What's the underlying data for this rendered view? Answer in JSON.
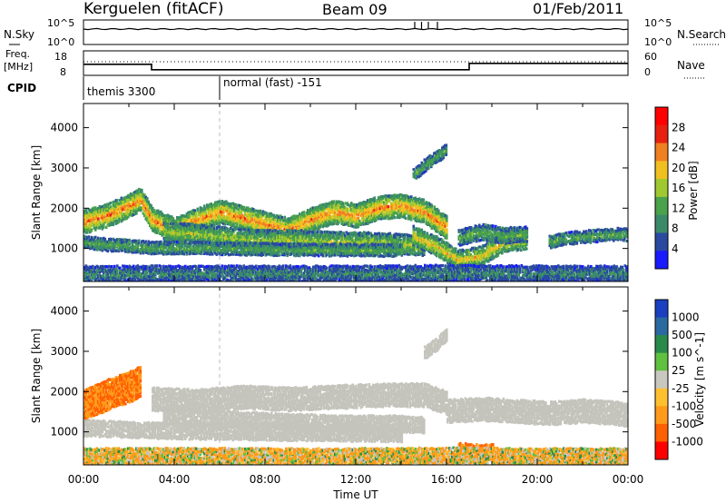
{
  "header": {
    "station": "Kerguelen (fitACF)",
    "beam": "Beam 09",
    "date": "01/Feb/2011"
  },
  "noise_panel": {
    "left_label": "N.Sky",
    "right_label": "N.Search",
    "left_ticks": [
      "10^5",
      "10^0"
    ],
    "right_ticks": [
      "10^5",
      "10^0"
    ]
  },
  "freq_panel": {
    "left_label_1": "Freq.",
    "left_label_2": "[MHz]",
    "right_label": "Nave",
    "left_ticks": [
      "18",
      "8"
    ],
    "right_ticks": [
      "60",
      "0"
    ],
    "freq_trace": [
      [
        0,
        12.5
      ],
      [
        3.0,
        12.5
      ],
      [
        3.0,
        10.3
      ],
      [
        17.0,
        10.3
      ],
      [
        17.0,
        12.9
      ],
      [
        24.0,
        12.9
      ]
    ],
    "freq_range": [
      8,
      18
    ]
  },
  "cpid": {
    "label": "CPID",
    "modes": [
      {
        "start": 0,
        "name": "themis 3300"
      },
      {
        "start": 6.0,
        "name": "normal (fast) -151"
      }
    ]
  },
  "colors": {
    "power": [
      "#1a1aff",
      "#2a4aa0",
      "#3a8a6a",
      "#4aa24a",
      "#a0c830",
      "#f0c020",
      "#f08020",
      "#e82010",
      "#ff0000"
    ],
    "velocity": [
      "#ff0000",
      "#ff6000",
      "#ff9a1a",
      "#ffc030",
      "#c8c8c0",
      "#60c040",
      "#2a8a4a",
      "#2a6aa0",
      "#1a40c0"
    ],
    "ground_scatter": "#c4c4bc"
  },
  "chart_data": [
    {
      "type": "heatmap",
      "title": "",
      "parameter": "Power",
      "xlabel": "",
      "ylabel": "Slant Range [km]",
      "x_range": [
        0,
        24
      ],
      "ylim": [
        180,
        4600
      ],
      "yticks": [
        1000,
        2000,
        3000,
        4000
      ],
      "colorbar": {
        "label": "Power [dB]",
        "ticks": [
          "28",
          "24",
          "20",
          "16",
          "12",
          "8",
          "4"
        ],
        "range": [
          0,
          32
        ]
      },
      "echo_bands": [
        {
          "t": [
            0.0,
            1.0,
            2.0,
            2.5,
            3.0,
            4.0,
            5.0,
            6.0,
            7.0,
            8.0,
            9.0,
            10.0,
            11.0,
            12.0,
            13.0,
            14.0,
            15.0,
            16.0
          ],
          "r": [
            1650,
            1800,
            2050,
            2200,
            1700,
            1450,
            1700,
            1900,
            1750,
            1600,
            1450,
            1700,
            1900,
            1800,
            2000,
            2050,
            1900,
            1500
          ],
          "w": 260,
          "p": 24
        },
        {
          "t": [
            3.5,
            5.0,
            6.5,
            8.0,
            9.5,
            11.0,
            12.5,
            14.0,
            15.0
          ],
          "r": [
            1400,
            1350,
            1250,
            1200,
            1200,
            1150,
            1150,
            1100,
            1050
          ],
          "w": 220,
          "p": 16
        },
        {
          "t": [
            0.0,
            1.0,
            2.0,
            3.0,
            5.0,
            7.0,
            9.0,
            11.0,
            13.0,
            14.0
          ],
          "r": [
            1150,
            1080,
            1050,
            1000,
            1000,
            980,
            960,
            950,
            950,
            940
          ],
          "w": 140,
          "p": 12
        },
        {
          "t": [
            14.5,
            15.5,
            16.5,
            17.5,
            18.5,
            19.5
          ],
          "r": [
            1300,
            1050,
            700,
            800,
            1150,
            1200
          ],
          "w": 220,
          "p": 20
        },
        {
          "t": [
            14.5,
            15.0,
            15.5,
            16.0
          ],
          "r": [
            2800,
            3050,
            3250,
            3450
          ],
          "w": 140,
          "p": 12
        },
        {
          "t": [
            16.5,
            17.5,
            18.5,
            19.5
          ],
          "r": [
            1250,
            1400,
            1300,
            1350
          ],
          "w": 160,
          "p": 12
        },
        {
          "t": [
            20.5,
            21.5,
            22.5,
            23.5,
            24.0
          ],
          "r": [
            1150,
            1250,
            1300,
            1350,
            1320
          ],
          "w": 140,
          "p": 12
        },
        {
          "t": [
            0.0,
            4.0,
            8.0,
            12.0,
            16.0,
            20.0,
            24.0
          ],
          "r": [
            360,
            360,
            360,
            360,
            380,
            360,
            360
          ],
          "w": 200,
          "p": 8
        }
      ]
    },
    {
      "type": "heatmap",
      "title": "",
      "parameter": "Velocity",
      "xlabel": "Time UT",
      "ylabel": "Slant Range [km]",
      "x_range": [
        0,
        24
      ],
      "ylim": [
        180,
        4600
      ],
      "yticks": [
        1000,
        2000,
        3000,
        4000
      ],
      "xticks": [
        "00:00",
        "04:00",
        "08:00",
        "12:00",
        "16:00",
        "20:00",
        "00:00"
      ],
      "colorbar": {
        "label": "Velocity [m s^-1]",
        "ticks": [
          "1000",
          "500",
          "100",
          "25",
          "-25",
          "-100",
          "-500",
          "-1000"
        ]
      },
      "echo_bands": [
        {
          "t": [
            0.0,
            1.0,
            2.0,
            2.5
          ],
          "r": [
            1650,
            1900,
            2100,
            2250
          ],
          "w": 380,
          "v": -300
        },
        {
          "t": [
            3.0,
            5.0,
            7.0,
            9.0,
            11.0,
            13.0,
            15.0,
            16.0
          ],
          "r": [
            1800,
            1750,
            1850,
            1800,
            1850,
            1900,
            1900,
            1700
          ],
          "w": 280,
          "v": 0
        },
        {
          "t": [
            3.5,
            6.0,
            8.5,
            11.0,
            13.5,
            15.0
          ],
          "r": [
            1350,
            1300,
            1250,
            1200,
            1200,
            1150
          ],
          "w": 200,
          "v": 0
        },
        {
          "t": [
            0.0,
            3.0,
            6.0,
            9.0,
            12.0,
            14.0
          ],
          "r": [
            1080,
            1020,
            990,
            970,
            950,
            940
          ],
          "w": 160,
          "v": 0
        },
        {
          "t": [
            16.0,
            17.5,
            19.0,
            20.5,
            22.0,
            23.5,
            24.0
          ],
          "r": [
            1500,
            1550,
            1500,
            1450,
            1500,
            1450,
            1400
          ],
          "w": 260,
          "v": 0
        },
        {
          "t": [
            15.0,
            15.5,
            16.0
          ],
          "r": [
            2950,
            3150,
            3400
          ],
          "w": 140,
          "v": 0
        },
        {
          "t": [
            16.5,
            17.5,
            18.0
          ],
          "r": [
            560,
            520,
            540
          ],
          "w": 120,
          "v": -300
        },
        {
          "t": [
            0.0,
            4.0,
            8.0,
            12.0,
            16.0,
            20.0,
            24.0
          ],
          "r": [
            380,
            390,
            380,
            380,
            400,
            380,
            380
          ],
          "w": 180,
          "v": -60
        }
      ]
    }
  ]
}
